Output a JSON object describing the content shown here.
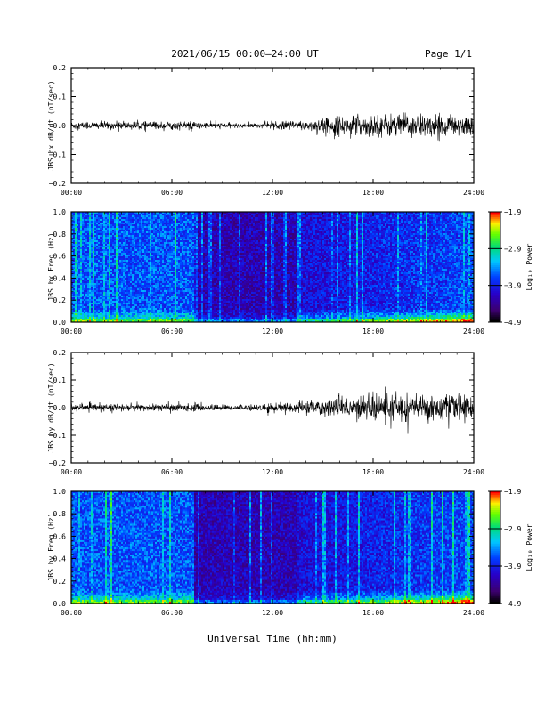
{
  "header": {
    "title": "2021/06/15  00:00–24:00 UT",
    "page": "Page 1/1"
  },
  "xlabel": "Universal Time (hh:mm)",
  "chart_data": [
    {
      "type": "line",
      "ylabel": "JBS bx dB/dt (nT/sec)",
      "xlim": [
        0,
        24
      ],
      "ylim": [
        -0.2,
        0.2
      ],
      "yticks": [
        "0.2",
        "0.1",
        "0.0",
        "−0.1",
        "−0.2"
      ],
      "xticks": [
        "00:00",
        "06:00",
        "12:00",
        "18:00",
        "24:00"
      ],
      "amplitude_profile": [
        [
          0,
          0.012
        ],
        [
          7,
          0.012
        ],
        [
          10,
          0.006
        ],
        [
          12,
          0.01
        ],
        [
          14,
          0.018
        ],
        [
          16,
          0.028
        ],
        [
          18,
          0.034
        ],
        [
          20,
          0.036
        ],
        [
          22,
          0.032
        ],
        [
          24,
          0.03
        ]
      ]
    },
    {
      "type": "heatmap",
      "ylabel": "JBS bx Freq (Hz)",
      "xlim": [
        0,
        24
      ],
      "ylim": [
        0,
        1
      ],
      "yticks": [
        "1.0",
        "0.8",
        "0.6",
        "0.4",
        "0.2",
        "0.0"
      ],
      "xticks": [
        "00:00",
        "06:00",
        "12:00",
        "18:00",
        "24:00"
      ],
      "colorbar_label": "Log₁₀ Power",
      "colorbar_ticks": [
        "−1.9",
        "−2.9",
        "−3.9",
        "−4.9"
      ],
      "zlim": [
        -4.9,
        -1.9
      ]
    },
    {
      "type": "line",
      "ylabel": "JBS by dB/dt (nT/sec)",
      "xlim": [
        0,
        24
      ],
      "ylim": [
        -0.2,
        0.2
      ],
      "yticks": [
        "0.2",
        "0.1",
        "0.0",
        "−0.1",
        "−0.2"
      ],
      "xticks": [
        "00:00",
        "06:00",
        "12:00",
        "18:00",
        "24:00"
      ],
      "amplitude_profile": [
        [
          0,
          0.012
        ],
        [
          7,
          0.012
        ],
        [
          10,
          0.008
        ],
        [
          12,
          0.012
        ],
        [
          14,
          0.022
        ],
        [
          16,
          0.034
        ],
        [
          18,
          0.04
        ],
        [
          20,
          0.045
        ],
        [
          22,
          0.04
        ],
        [
          24,
          0.035
        ]
      ]
    },
    {
      "type": "heatmap",
      "ylabel": "JBS by Freq (Hz)",
      "xlim": [
        0,
        24
      ],
      "ylim": [
        0,
        1
      ],
      "yticks": [
        "1.0",
        "0.8",
        "0.6",
        "0.4",
        "0.2",
        "0.0"
      ],
      "xticks": [
        "00:00",
        "06:00",
        "12:00",
        "18:00",
        "24:00"
      ],
      "colorbar_label": "Log₁₀ Power",
      "colorbar_ticks": [
        "−1.9",
        "−2.9",
        "−3.9",
        "−4.9"
      ],
      "zlim": [
        -4.9,
        -1.9
      ]
    }
  ]
}
